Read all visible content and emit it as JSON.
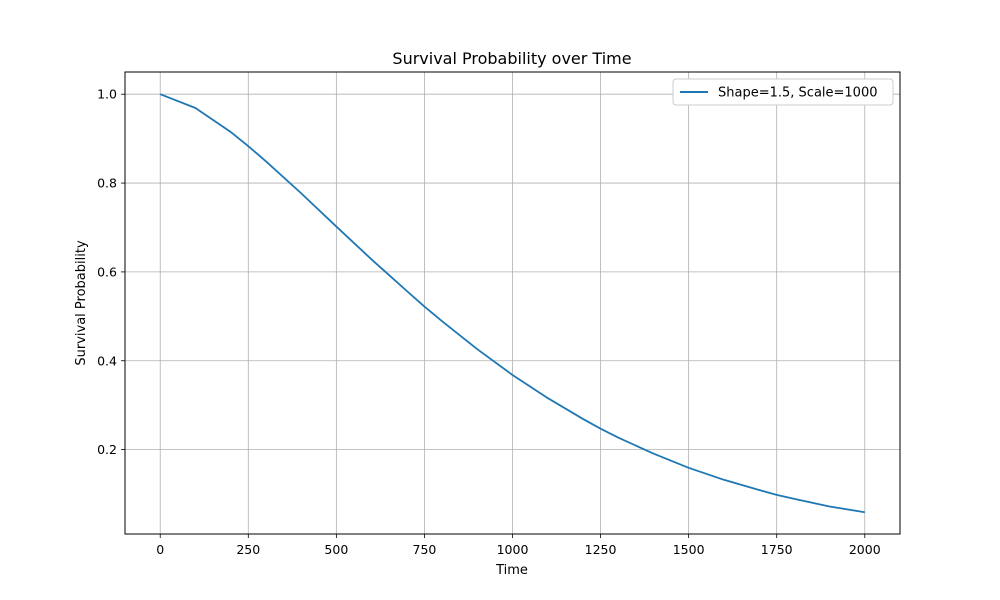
{
  "chart_data": {
    "type": "line",
    "title": "Survival Probability over Time",
    "xlabel": "Time",
    "ylabel": "Survival Probability",
    "xlim": [
      -100,
      2100
    ],
    "ylim": [
      0.01,
      1.05
    ],
    "xticks": [
      0,
      250,
      500,
      750,
      1000,
      1250,
      1500,
      1750,
      2000
    ],
    "yticks": [
      0.2,
      0.4,
      0.6,
      0.8,
      1.0
    ],
    "xtick_labels": [
      "0",
      "250",
      "500",
      "750",
      "1000",
      "1250",
      "1500",
      "1750",
      "2000"
    ],
    "ytick_labels": [
      "0.2",
      "0.4",
      "0.6",
      "0.8",
      "1.0"
    ],
    "grid": true,
    "legend_position": "top-right",
    "series": [
      {
        "name": "Shape=1.5, Scale=1000",
        "color": "#1f77b4",
        "x": [
          0,
          100,
          200,
          250,
          300,
          400,
          500,
          600,
          700,
          750,
          800,
          900,
          1000,
          1100,
          1200,
          1250,
          1300,
          1400,
          1500,
          1600,
          1700,
          1750,
          1800,
          1900,
          2000
        ],
        "y": [
          1.0,
          0.969,
          0.915,
          0.883,
          0.849,
          0.777,
          0.702,
          0.628,
          0.557,
          0.522,
          0.489,
          0.426,
          0.368,
          0.316,
          0.269,
          0.247,
          0.227,
          0.191,
          0.159,
          0.132,
          0.109,
          0.098,
          0.089,
          0.072,
          0.059
        ]
      }
    ]
  }
}
